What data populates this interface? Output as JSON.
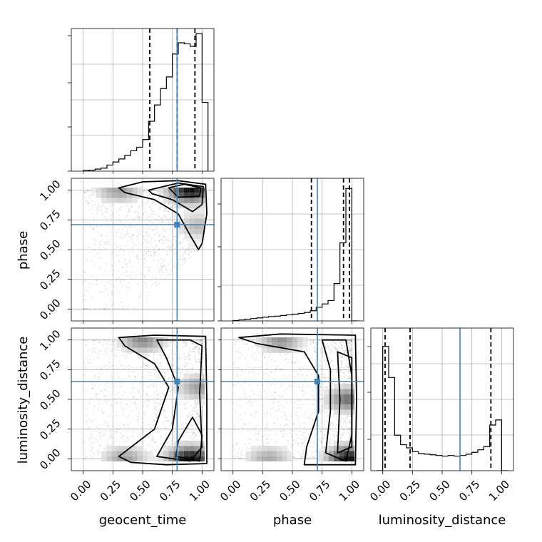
{
  "chart_data": {
    "type": "corner",
    "parameters": [
      "geocent_time",
      "phase",
      "luminosity_distance"
    ],
    "tick_values": [
      0.0,
      0.25,
      0.5,
      0.75,
      1.0
    ],
    "tick_labels": [
      "0.00",
      "0.25",
      "0.50",
      "0.75",
      "1.00"
    ],
    "xlim": [
      -0.1,
      1.1
    ],
    "truth_color": "#4682b4",
    "truths": {
      "geocent_time": 0.79,
      "phase": 0.71,
      "luminosity_distance": 0.65
    },
    "grid": true,
    "diagonals": [
      {
        "parameter": "geocent_time",
        "quantiles": [
          0.56,
          0.79,
          0.94
        ],
        "bin_edges": [
          0.0,
          0.05,
          0.1,
          0.15,
          0.2,
          0.25,
          0.3,
          0.35,
          0.4,
          0.45,
          0.5,
          0.55,
          0.6,
          0.65,
          0.7,
          0.75,
          0.8,
          0.85,
          0.9,
          0.95,
          1.0,
          1.05
        ],
        "counts": [
          1,
          2,
          4,
          6,
          12,
          18,
          24,
          31,
          40,
          47,
          62,
          98,
          130,
          162,
          185,
          230,
          252,
          250,
          245,
          270,
          135
        ],
        "ylim": [
          0,
          280
        ]
      },
      {
        "parameter": "phase",
        "quantiles": [
          0.66,
          0.93,
          0.98
        ],
        "bin_edges": [
          0.0,
          0.05,
          0.1,
          0.15,
          0.2,
          0.25,
          0.3,
          0.35,
          0.4,
          0.45,
          0.5,
          0.55,
          0.6,
          0.65,
          0.7,
          0.75,
          0.8,
          0.85,
          0.9,
          0.95,
          1.0,
          1.05
        ],
        "counts": [
          1,
          3,
          5,
          7,
          9,
          11,
          13,
          14,
          16,
          18,
          20,
          22,
          25,
          30,
          40,
          50,
          60,
          110,
          230,
          390,
          0
        ],
        "ylim": [
          0,
          420
        ]
      },
      {
        "parameter": "luminosity_distance",
        "quantiles": [
          0.02,
          0.23,
          0.91
        ],
        "bin_edges": [
          -0.05,
          0.0,
          0.05,
          0.1,
          0.15,
          0.2,
          0.25,
          0.3,
          0.35,
          0.4,
          0.45,
          0.5,
          0.55,
          0.6,
          0.65,
          0.7,
          0.75,
          0.8,
          0.85,
          0.9,
          0.95,
          1.0,
          1.05
        ],
        "counts": [
          0,
          196,
          147,
          56,
          41,
          36,
          30,
          27,
          26,
          25,
          24,
          23,
          24,
          23,
          24,
          26,
          29,
          33,
          38,
          72,
          80,
          0
        ],
        "ylim": [
          0,
          225
        ]
      }
    ],
    "pairs": [
      {
        "x": "geocent_time",
        "y": "phase",
        "ylim": [
          -0.1,
          1.1
        ],
        "density_peaks": [
          [
            0.9,
            1.0,
            1.0
          ],
          [
            0.3,
            1.0,
            0.4
          ],
          [
            0.97,
            0.7,
            0.3
          ]
        ]
      },
      {
        "x": "geocent_time",
        "y": "luminosity_distance",
        "ylim": [
          -0.1,
          1.1
        ],
        "density_peaks": [
          [
            0.9,
            0.0,
            1.0
          ],
          [
            0.35,
            0.0,
            0.4
          ],
          [
            0.5,
            1.0,
            0.5
          ],
          [
            0.98,
            0.6,
            0.4
          ]
        ]
      },
      {
        "x": "phase",
        "y": "luminosity_distance",
        "ylim": [
          -0.1,
          1.1
        ],
        "density_peaks": [
          [
            0.98,
            0.0,
            1.0
          ],
          [
            0.3,
            0.0,
            0.35
          ],
          [
            0.4,
            1.0,
            0.45
          ],
          [
            0.98,
            0.5,
            0.6
          ]
        ]
      }
    ]
  }
}
